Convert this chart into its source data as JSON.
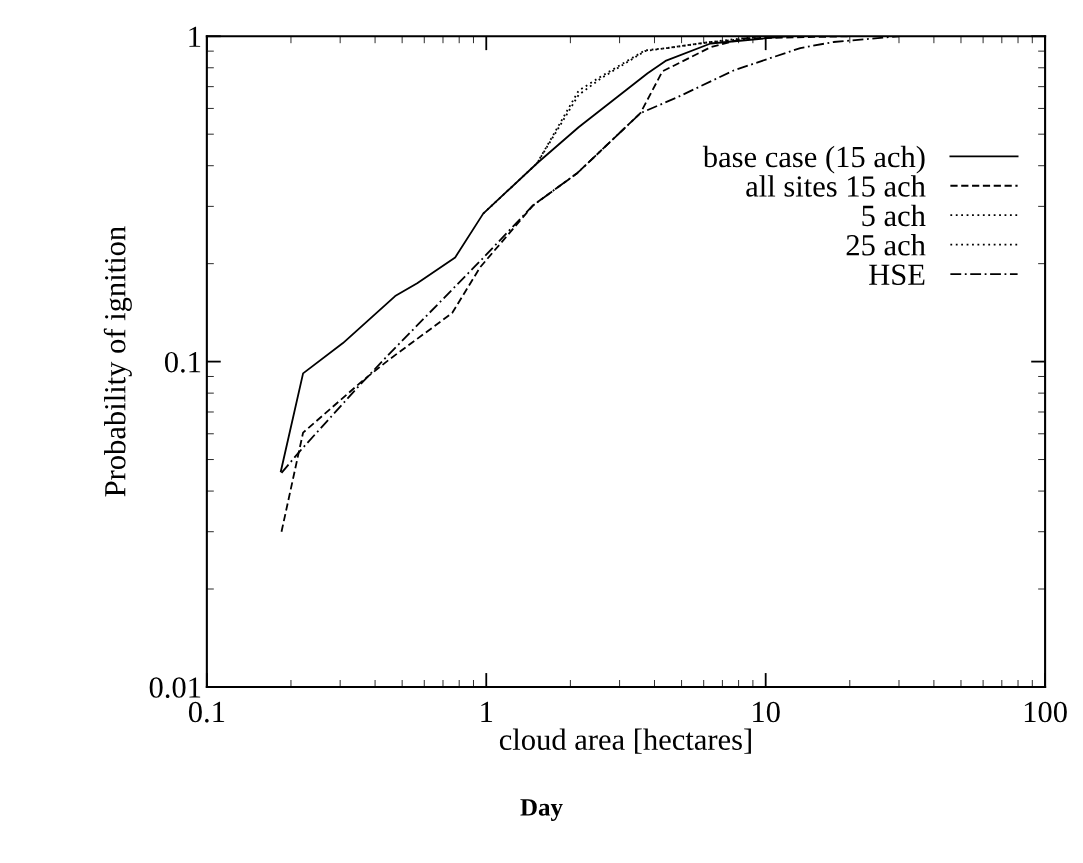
{
  "chart_data": {
    "type": "line",
    "xlabel": "cloud area [hectares]",
    "ylabel": "Probability of ignition",
    "log": "xy",
    "xlim": [
      0.1,
      100
    ],
    "xticks": [
      0.1,
      1,
      10,
      100
    ],
    "ylim": [
      0.01,
      1
    ],
    "yticks": [
      0.01,
      0.1,
      1
    ],
    "legend": "right",
    "grid": false,
    "annotations": [
      "Day"
    ],
    "series": [
      {
        "name": "base case (15 ach)",
        "color": "#000000",
        "line_style": "solid",
        "x": [
          0.184,
          0.221,
          0.307,
          0.472,
          0.566,
          0.774,
          0.975,
          1.52,
          2.14,
          3.78,
          4.38,
          6.35,
          12
        ],
        "values": [
          0.046,
          0.092,
          0.114,
          0.159,
          0.174,
          0.209,
          0.285,
          0.407,
          0.525,
          0.77,
          0.84,
          0.95,
          1.0
        ]
      },
      {
        "name": "all sites 15 ach",
        "color": "#000000",
        "line_style": "dashed",
        "x": [
          0.185,
          0.221,
          0.362,
          0.453,
          0.755,
          0.951,
          1.47,
          2.12,
          3.56,
          4.27,
          6.35,
          8.34,
          20
        ],
        "values": [
          0.03,
          0.0605,
          0.0875,
          0.102,
          0.141,
          0.195,
          0.302,
          0.38,
          0.58,
          0.78,
          0.925,
          0.985,
          1.0
        ]
      },
      {
        "name": "5 ach",
        "color": "#000000",
        "line_style": "dotted",
        "x": [
          0.975,
          1.52,
          2.14,
          2.56,
          3.7,
          4.45,
          6.35,
          9.6
        ],
        "values": [
          0.285,
          0.407,
          0.66,
          0.74,
          0.9,
          0.92,
          0.96,
          1.0
        ]
      },
      {
        "name": "25 ach",
        "color": "#000000",
        "line_style": "dotted",
        "x": [
          1.52,
          2.14,
          2.56,
          3.7,
          4.45,
          6.35,
          11
        ],
        "values": [
          0.407,
          0.68,
          0.75,
          0.905,
          0.92,
          0.96,
          1.0
        ]
      },
      {
        "name": "HSE",
        "color": "#000000",
        "line_style": "dashdot",
        "x": [
          0.185,
          0.215,
          0.345,
          0.442,
          0.968,
          1.47,
          2.12,
          3.56,
          4.84,
          7.68,
          13.3,
          17.5,
          30
        ],
        "values": [
          0.0455,
          0.053,
          0.083,
          0.104,
          0.207,
          0.302,
          0.38,
          0.58,
          0.65,
          0.785,
          0.92,
          0.96,
          1.0
        ]
      }
    ]
  }
}
